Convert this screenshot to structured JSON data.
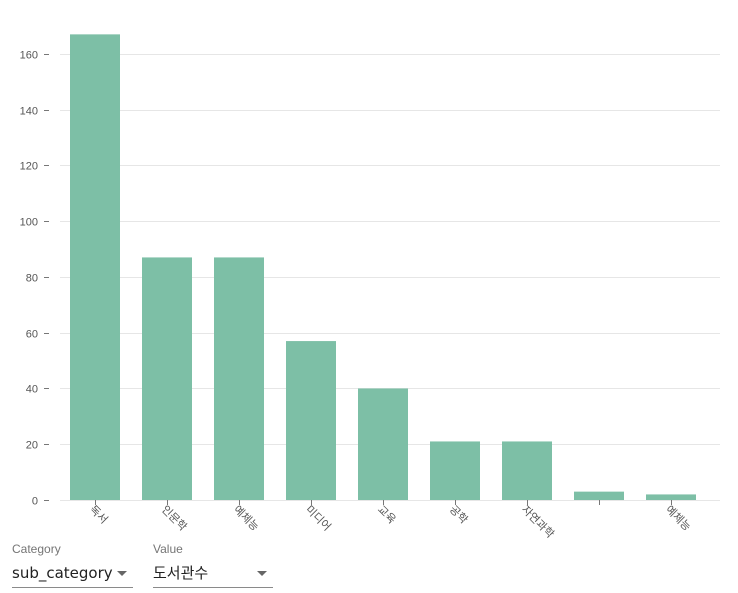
{
  "chart_data": {
    "type": "bar",
    "categories": [
      "독서",
      "인문학",
      "예체능",
      "미디어",
      "교육",
      "공학",
      "자연과학",
      "",
      "예체능"
    ],
    "values": [
      167,
      87,
      87,
      57,
      40,
      21,
      21,
      3,
      2
    ],
    "ylim": [
      0,
      170
    ],
    "yticks": [
      0,
      20,
      40,
      60,
      80,
      100,
      120,
      140,
      160
    ],
    "grid": true,
    "bar_color": "#7dbfa6"
  },
  "controls": {
    "category": {
      "label": "Category",
      "value": "sub_category"
    },
    "value": {
      "label": "Value",
      "value": "도서관수"
    }
  },
  "colors": {
    "grid": "#e6e6e6",
    "axis_text": "#555555"
  }
}
